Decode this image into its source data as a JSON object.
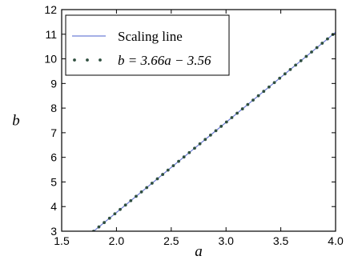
{
  "chart_data": {
    "type": "line",
    "xlabel": "a",
    "ylabel": "b",
    "xlim": [
      1.5,
      4.0
    ],
    "ylim": [
      3,
      12
    ],
    "xticks": [
      "1.5",
      "2.0",
      "2.5",
      "3.0",
      "3.5",
      "4.0"
    ],
    "yticks": [
      "3",
      "4",
      "5",
      "6",
      "7",
      "8",
      "9",
      "10",
      "11",
      "12"
    ],
    "grid": false,
    "legend_position": "top-left",
    "series": [
      {
        "name": "Scaling line",
        "style": "solid",
        "color": "#6f7fd8",
        "x": [
          1.5,
          4.0
        ],
        "y": [
          1.93,
          11.08
        ]
      },
      {
        "name": "b = 3.66a − 3.56",
        "style": "dotted",
        "color": "#2f4f3f",
        "slope": 3.66,
        "intercept": -3.56,
        "x": [
          1.5,
          4.0
        ],
        "y": [
          1.93,
          11.08
        ]
      }
    ]
  }
}
